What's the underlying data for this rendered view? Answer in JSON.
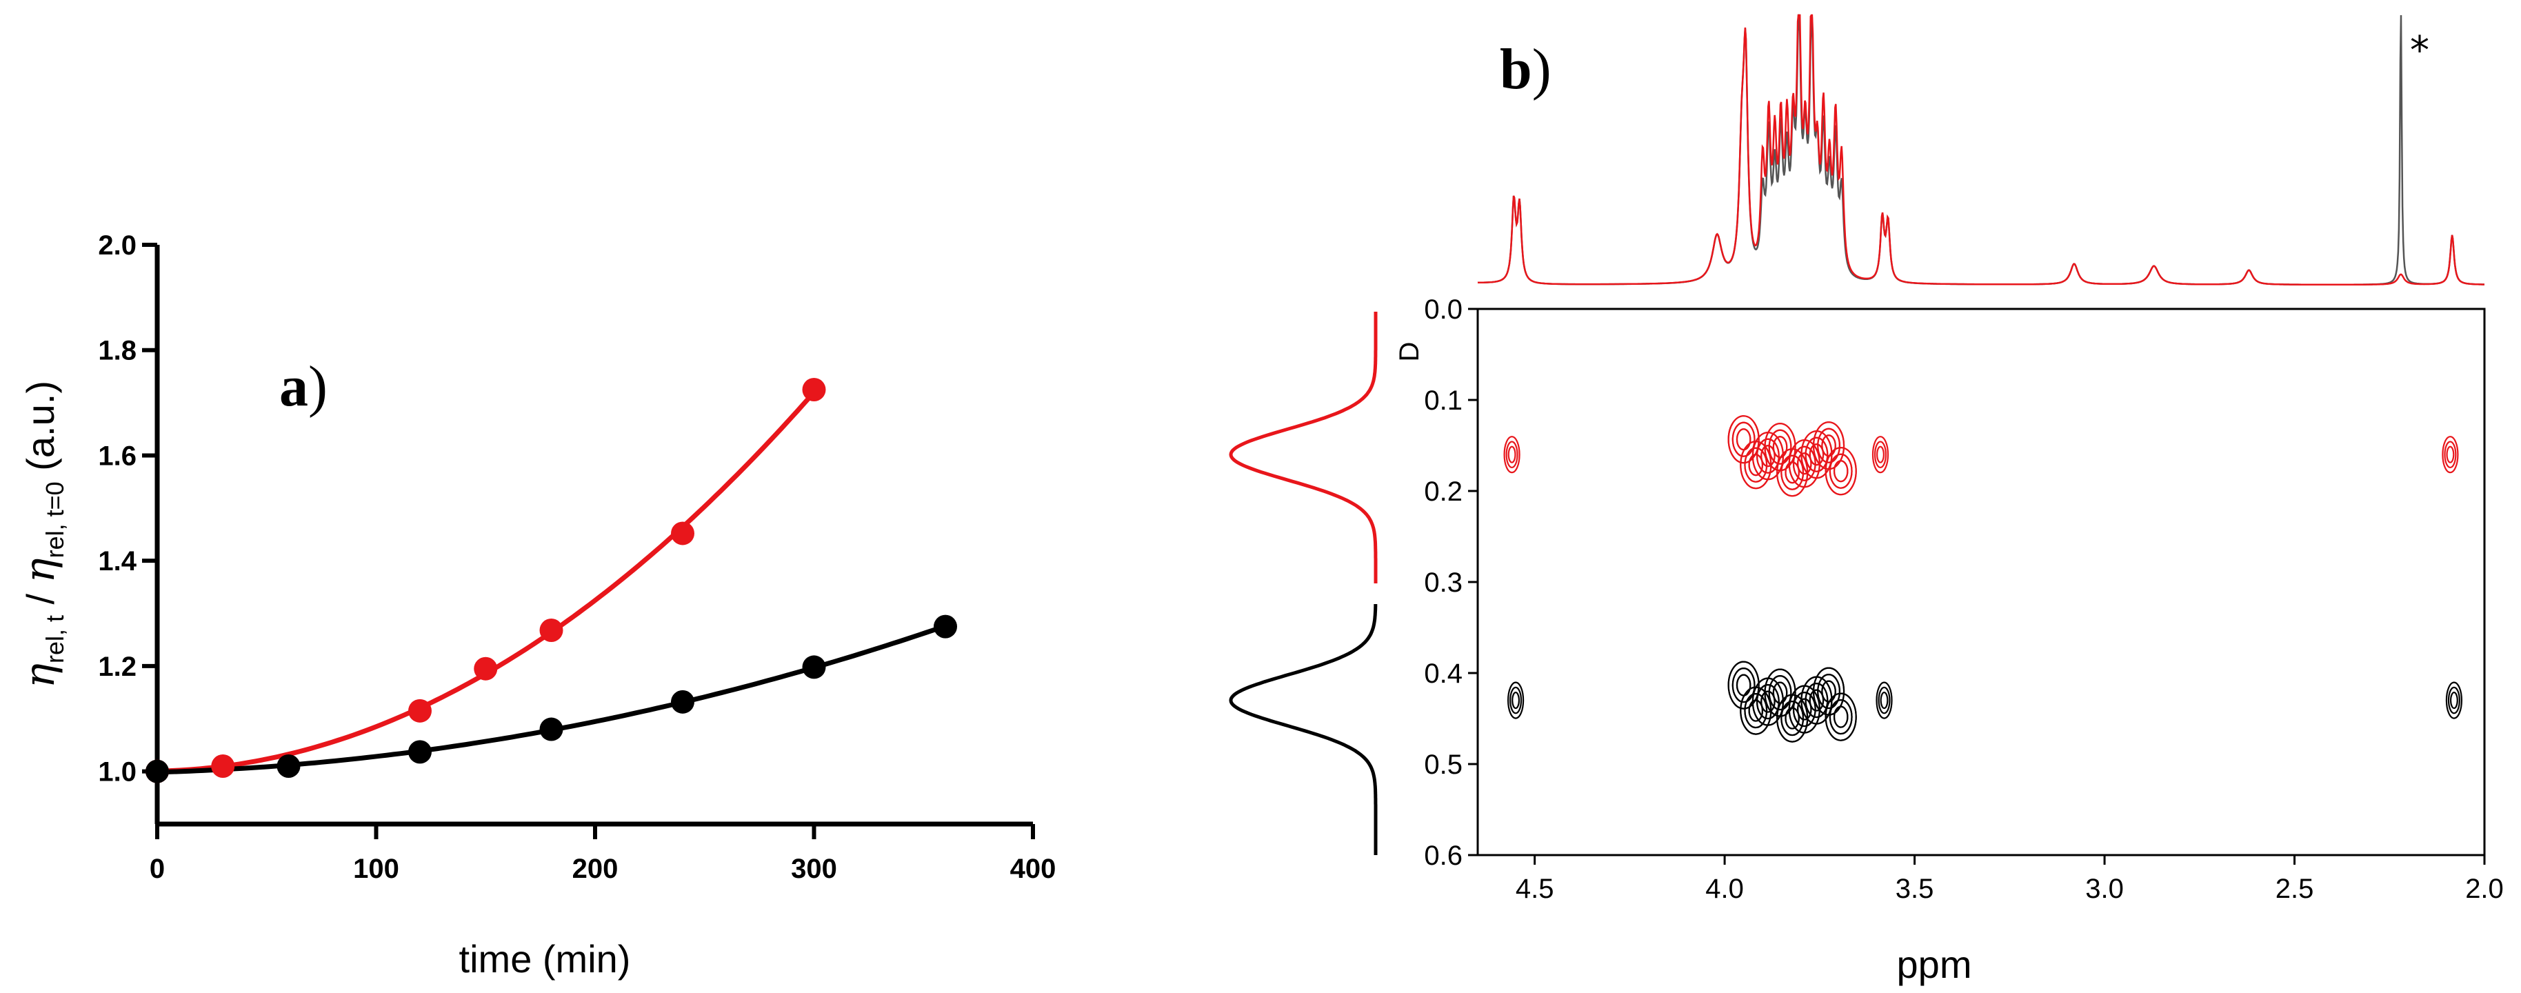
{
  "panel_a": {
    "label": "a",
    "paren": ")"
  },
  "panel_b": {
    "label": "b",
    "paren": ")"
  },
  "chart_data": [
    {
      "type": "scatter",
      "panel": "a",
      "xlabel": "time (min)",
      "ylabel": {
        "eta": "η",
        "num_sub": "rel, t",
        "sep": " / ",
        "den_sub": "rel, t=0",
        "unit": " (a.u.)"
      },
      "xlim": [
        0,
        400
      ],
      "ylim": [
        0.9,
        2.0
      ],
      "x_ticks": [
        "0",
        "100",
        "200",
        "300",
        "400"
      ],
      "y_ticks": [
        "1.0",
        "1.2",
        "1.4",
        "1.6",
        "1.8",
        "2.0"
      ],
      "series": [
        {
          "color": "#e8161b",
          "x": [
            0,
            30,
            120,
            150,
            180,
            240,
            300
          ],
          "y": [
            1.0,
            1.01,
            1.115,
            1.195,
            1.268,
            1.452,
            1.725
          ],
          "fit": "quadratic"
        },
        {
          "color": "#000000",
          "x": [
            0,
            60,
            120,
            180,
            240,
            300,
            360
          ],
          "y": [
            1.0,
            1.01,
            1.037,
            1.08,
            1.132,
            1.198,
            1.275
          ],
          "fit": "quadratic"
        }
      ]
    },
    {
      "type": "heatmap",
      "panel": "b",
      "xlabel": "ppm",
      "ylabel": "D",
      "xlim": [
        4.65,
        2.0
      ],
      "ylim": [
        0.0,
        0.6
      ],
      "x_ticks": [
        "4.5",
        "4.0",
        "3.5",
        "3.0",
        "2.5",
        "2.0"
      ],
      "y_ticks": [
        "0.0",
        "0.1",
        "0.2",
        "0.3",
        "0.4",
        "0.5",
        "0.6"
      ],
      "annotation": "*",
      "series": [
        {
          "color": "#e8161b",
          "diffusion_peak": 0.16,
          "peaks_ppm": [
            4.56,
            3.94,
            3.78,
            3.59,
            2.09
          ]
        },
        {
          "color": "#000000",
          "diffusion_peak": 0.43,
          "peaks_ppm": [
            4.55,
            3.92,
            3.78,
            3.58,
            2.08
          ]
        }
      ]
    }
  ]
}
